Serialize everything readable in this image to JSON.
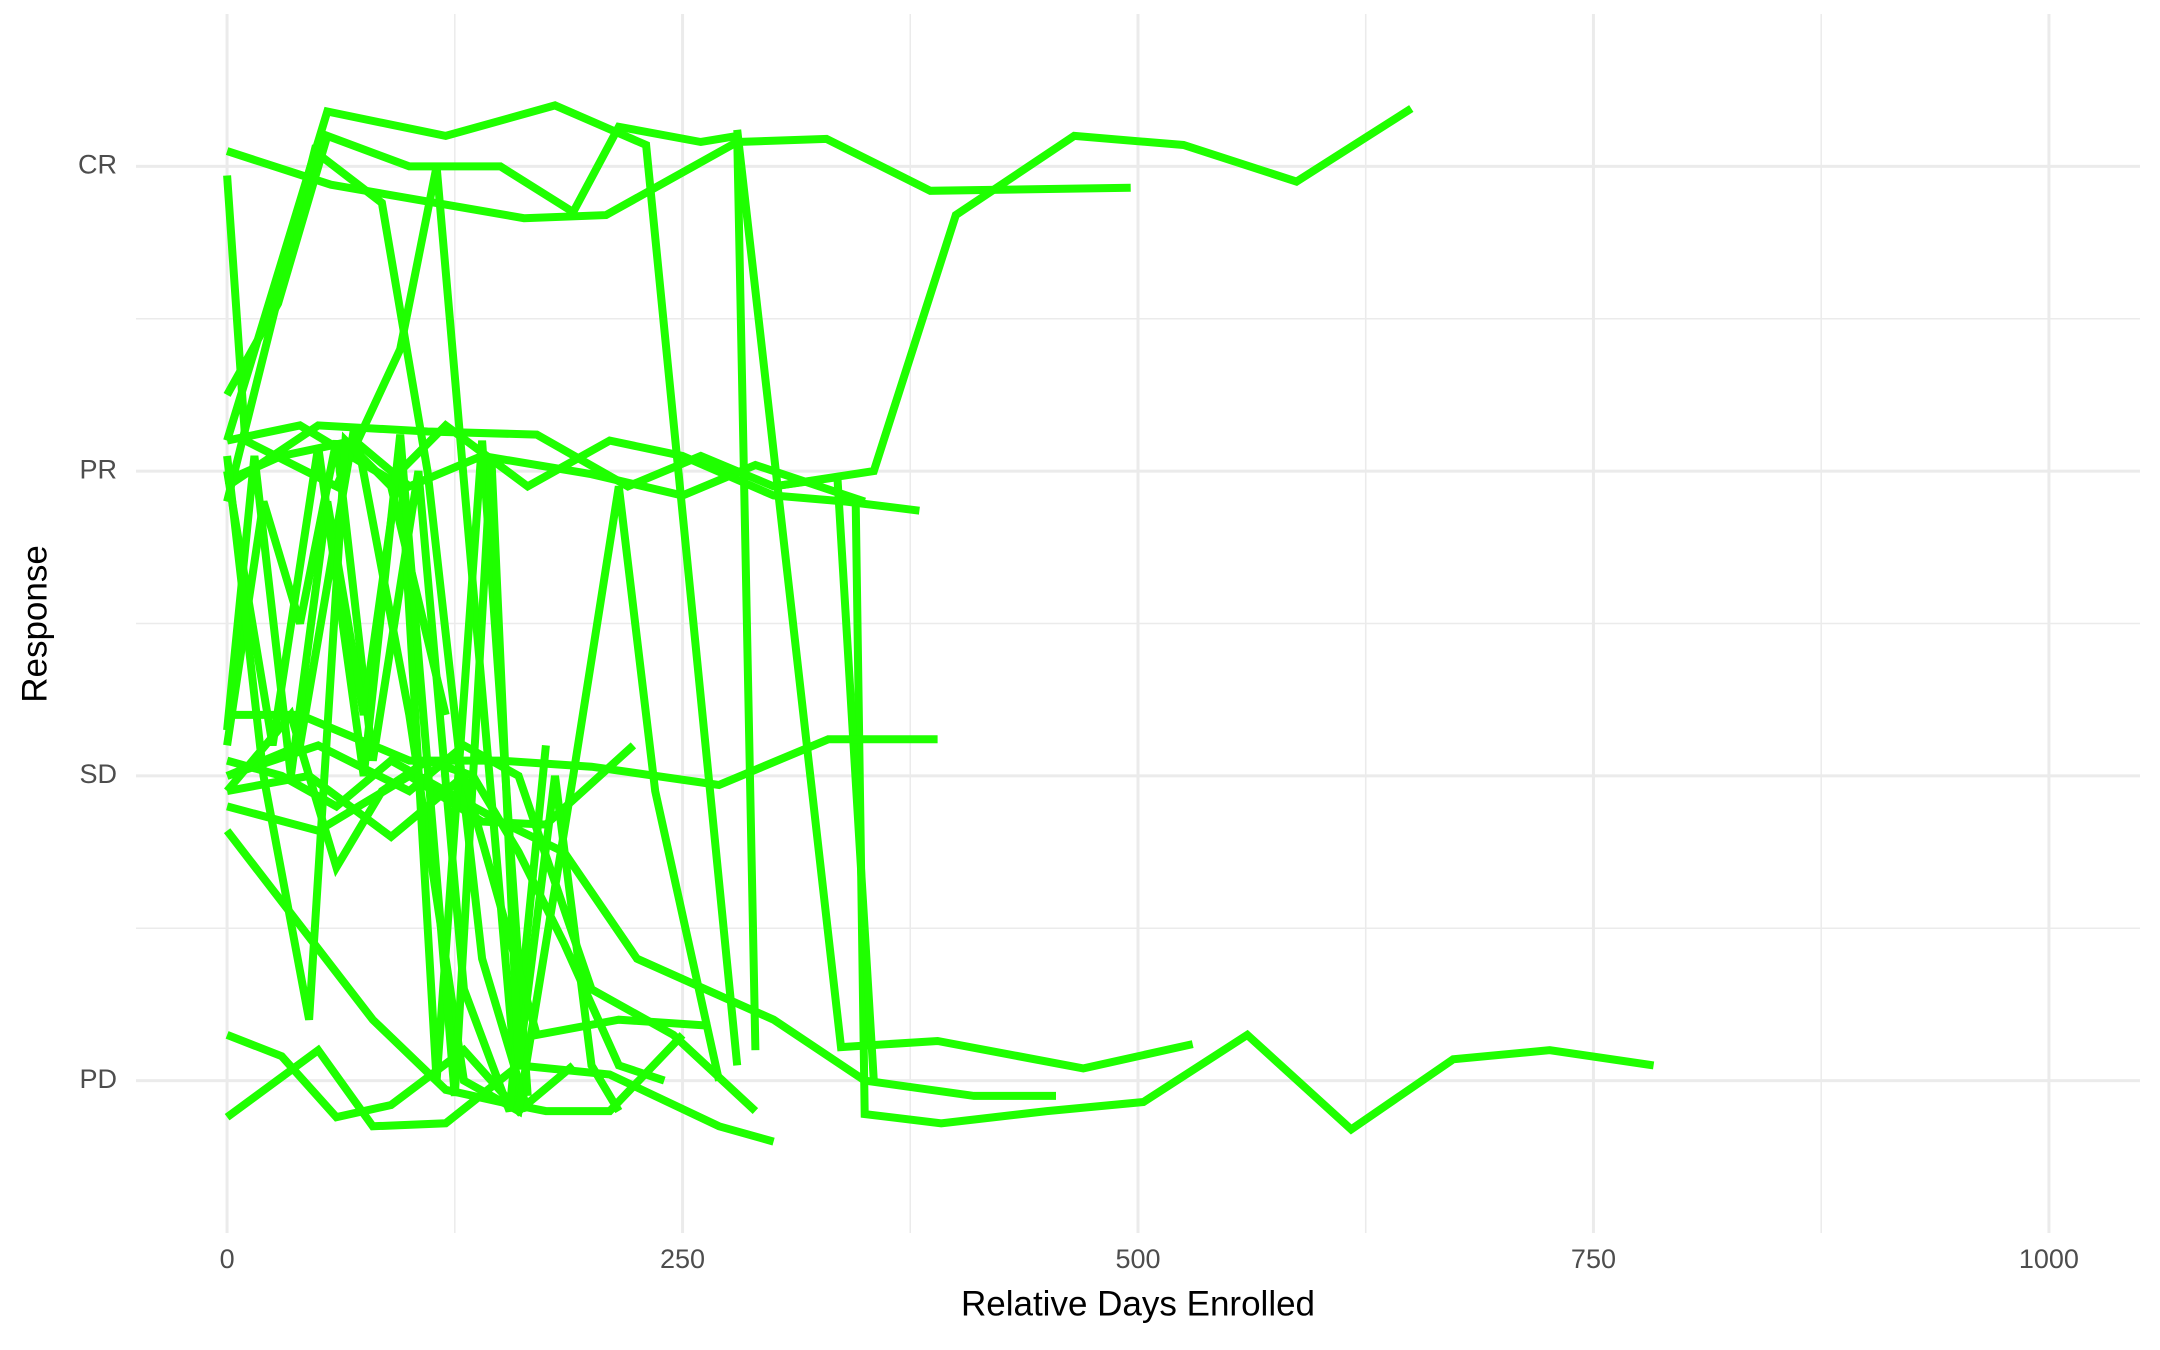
{
  "chart_data": {
    "type": "line",
    "xlabel": "Relative Days Enrolled",
    "ylabel": "Response",
    "color": "#1fff00",
    "xlim": [
      -50,
      1050
    ],
    "xticks": [
      0,
      250,
      500,
      750,
      1000
    ],
    "x_minor_ticks": [
      125,
      375,
      625,
      875
    ],
    "ylim": [
      0.5,
      4.5
    ],
    "yticks": [
      {
        "value": 1,
        "label": "PD"
      },
      {
        "value": 2,
        "label": "SD"
      },
      {
        "value": 3,
        "label": "PR"
      },
      {
        "value": 4,
        "label": "CR"
      }
    ],
    "y_minor_ticks": [
      1.5,
      2.5,
      3.5
    ],
    "grid": true,
    "series": [
      {
        "x": [
          0,
          57,
          163,
          208,
          280,
          329,
          386,
          496
        ],
        "values": [
          4.05,
          3.94,
          3.83,
          3.84,
          4.08,
          4.09,
          3.92,
          3.93
        ]
      },
      {
        "x": [
          0,
          55,
          120,
          180,
          230,
          280
        ],
        "values": [
          3.1,
          4.18,
          4.1,
          4.2,
          4.07,
          1.05
        ]
      },
      {
        "x": [
          0,
          48,
          85,
          110,
          140,
          165
        ],
        "values": [
          2.9,
          4.05,
          3.88,
          3.0,
          1.4,
          0.9
        ]
      },
      {
        "x": [
          0,
          28,
          55,
          100,
          150,
          190,
          215,
          260,
          280,
          290
        ],
        "values": [
          3.25,
          3.55,
          4.1,
          4.0,
          4.0,
          3.85,
          4.13,
          4.08,
          4.1,
          1.1
        ]
      },
      {
        "x": [
          0,
          10,
          60,
          95,
          115,
          160
        ],
        "values": [
          3.97,
          3.1,
          2.95,
          3.4,
          4.0,
          0.9
        ]
      },
      {
        "x": [
          300,
          355,
          400,
          465,
          525,
          587,
          650
        ],
        "values": [
          2.95,
          3.0,
          3.84,
          4.1,
          4.07,
          3.95,
          4.19
        ]
      },
      {
        "x": [
          345,
          350,
          392,
          450,
          503,
          560,
          617,
          673,
          726,
          783
        ],
        "values": [
          2.92,
          0.89,
          0.86,
          0.9,
          0.93,
          1.15,
          0.84,
          1.07,
          1.1,
          1.05
        ]
      },
      {
        "x": [
          280,
          337,
          390,
          470,
          530
        ],
        "values": [
          4.12,
          1.11,
          1.13,
          1.04,
          1.12
        ]
      },
      {
        "x": [
          0,
          40,
          90,
          120,
          165,
          210,
          250,
          300,
          340,
          380
        ],
        "values": [
          3.1,
          3.15,
          2.97,
          3.15,
          2.95,
          3.1,
          3.05,
          2.92,
          2.9,
          2.87
        ]
      },
      {
        "x": [
          0,
          30,
          70,
          100,
          140,
          200,
          250,
          290,
          350
        ],
        "values": [
          2.97,
          3.05,
          3.1,
          2.95,
          3.05,
          2.99,
          2.92,
          3.02,
          2.9
        ]
      },
      {
        "x": [
          0,
          50,
          110,
          170,
          220,
          260,
          300,
          335,
          355
        ],
        "values": [
          2.95,
          3.15,
          3.13,
          3.12,
          2.95,
          3.05,
          2.95,
          2.98,
          1.0
        ]
      },
      {
        "x": [
          0,
          40,
          100,
          150,
          200,
          270,
          330,
          390
        ],
        "values": [
          2.2,
          2.2,
          2.05,
          2.05,
          2.03,
          1.97,
          2.12,
          2.12
        ]
      },
      {
        "x": [
          0,
          50,
          100,
          140,
          175,
          223
        ],
        "values": [
          1.9,
          1.82,
          2.0,
          1.85,
          1.84,
          2.1
        ]
      },
      {
        "x": [
          0,
          30,
          60,
          90,
          120,
          150,
          185,
          225,
          300,
          350,
          410,
          455
        ],
        "values": [
          2.05,
          2.0,
          1.9,
          2.05,
          1.95,
          1.85,
          1.75,
          1.4,
          1.2,
          1.0,
          0.95,
          0.95
        ]
      },
      {
        "x": [
          0,
          50,
          100,
          130,
          160,
          200,
          245,
          290
        ],
        "values": [
          2.0,
          2.1,
          1.95,
          2.1,
          2.0,
          1.3,
          1.15,
          0.9
        ]
      },
      {
        "x": [
          0,
          80,
          120,
          150,
          175,
          210,
          250
        ],
        "values": [
          1.82,
          1.2,
          0.97,
          0.93,
          0.9,
          0.9,
          1.15
        ]
      },
      {
        "x": [
          0,
          30,
          60,
          90,
          130,
          160,
          190
        ],
        "values": [
          1.15,
          1.08,
          0.88,
          0.92,
          1.1,
          0.9,
          1.05
        ]
      },
      {
        "x": [
          0,
          50,
          80,
          120,
          160,
          210,
          270,
          300
        ],
        "values": [
          0.88,
          1.1,
          0.85,
          0.86,
          1.05,
          1.02,
          0.85,
          0.8
        ]
      },
      {
        "x": [
          0,
          40,
          70,
          100,
          130,
          160,
          190,
          215,
          235,
          270
        ],
        "values": [
          2.0,
          2.1,
          3.15,
          2.2,
          1.0,
          0.9,
          2.0,
          2.95,
          1.95,
          1.0
        ]
      },
      {
        "x": [
          0,
          20,
          40,
          60,
          80,
          105,
          130,
          155,
          175
        ],
        "values": [
          2.1,
          2.9,
          2.5,
          3.1,
          2.05,
          3.0,
          1.3,
          0.9,
          2.1
        ]
      },
      {
        "x": [
          0,
          15,
          35,
          55,
          75,
          95,
          115,
          140,
          165
        ],
        "values": [
          2.15,
          3.05,
          2.0,
          2.9,
          2.2,
          3.05,
          1.0,
          3.1,
          0.95
        ]
      },
      {
        "x": [
          0,
          25,
          50,
          75,
          95,
          125,
          145,
          160,
          180,
          200,
          215
        ],
        "values": [
          3.0,
          2.1,
          3.08,
          2.0,
          3.12,
          0.95,
          3.05,
          1.05,
          2.0,
          1.05,
          0.9
        ]
      },
      {
        "x": [
          0,
          35,
          60,
          85,
          110,
          135,
          160,
          185,
          215,
          240
        ],
        "values": [
          1.95,
          2.2,
          1.7,
          1.95,
          2.05,
          2.0,
          1.75,
          1.45,
          1.05,
          1.0
        ]
      },
      {
        "x": [
          0,
          45,
          90,
          130,
          170,
          215,
          265
        ],
        "values": [
          1.95,
          2.0,
          1.8,
          2.0,
          1.15,
          1.2,
          1.18
        ]
      },
      {
        "x": [
          0,
          20,
          45,
          65,
          90,
          120
        ],
        "values": [
          3.05,
          2.0,
          1.2,
          3.1,
          2.95,
          2.2
        ]
      }
    ]
  }
}
